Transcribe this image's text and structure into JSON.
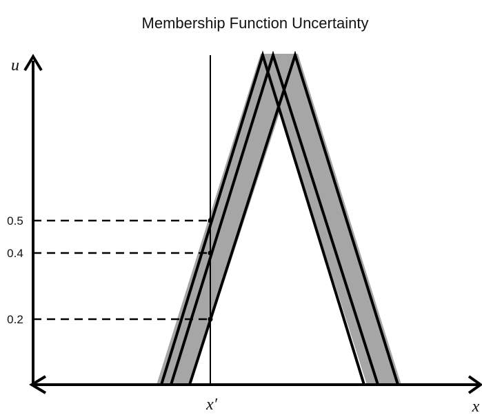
{
  "title": "Membership Function Uncertainty",
  "axes": {
    "y_label": "u",
    "x_label": "x",
    "x_marker_label": "x′"
  },
  "ticks": [
    {
      "label": "0.5",
      "value": 0.5
    },
    {
      "label": "0.4",
      "value": 0.4
    },
    {
      "label": "0.2",
      "value": 0.2
    }
  ],
  "colors": {
    "band_fill": "#a6a6a6",
    "stroke": "#000000"
  }
}
